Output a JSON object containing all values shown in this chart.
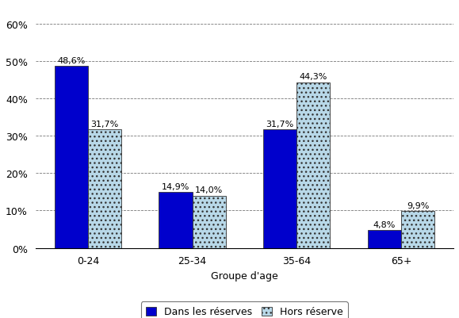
{
  "categories": [
    "0-24",
    "25-34",
    "35-64",
    "65+"
  ],
  "series": [
    {
      "label": "Dans les réserves",
      "values": [
        48.6,
        14.9,
        31.7,
        4.8
      ],
      "color": "#0000CC",
      "hatch": null
    },
    {
      "label": "Hors réserve",
      "values": [
        31.7,
        14.0,
        44.3,
        9.9
      ],
      "color": "#B8D8E8",
      "hatch": "..."
    }
  ],
  "value_labels": [
    "48,6%",
    "14,9%",
    "31,7%",
    "4,8%",
    "31,7%",
    "14,0%",
    "44,3%",
    "9,9%"
  ],
  "xlabel": "Groupe d'age",
  "ylim": [
    0,
    65
  ],
  "yticks": [
    0,
    10,
    20,
    30,
    40,
    50,
    60
  ],
  "ytick_labels": [
    "0%",
    "10%",
    "20%",
    "30%",
    "40%",
    "50%",
    "60%"
  ],
  "bar_width": 0.32,
  "background_color": "#ffffff",
  "grid_color": "#555555",
  "font_size": 9,
  "label_font_size": 8
}
